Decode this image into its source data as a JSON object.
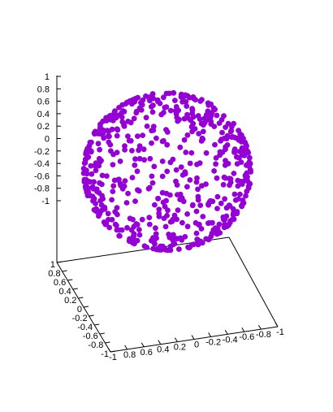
{
  "chart_data": {
    "type": "scatter",
    "subtype": "3d-scatter",
    "title": "",
    "legend": "none",
    "grid": false,
    "marker_color": "#9400d3",
    "description_of_shape": "points distributed on the surface of a unit sphere",
    "axes": {
      "z": {
        "range": [
          -1,
          1
        ],
        "ticks": [
          "1",
          "0.8",
          "0.6",
          "0.4",
          "0.2",
          "0",
          "-0.2",
          "-0.4",
          "-0.6",
          "-0.8",
          "-1"
        ]
      },
      "y": {
        "range": [
          -1,
          1
        ],
        "ticks": [
          "1",
          "0.8",
          "0.6",
          "0.4",
          "0.2",
          "0",
          "-0.2",
          "-0.4",
          "-0.6",
          "-0.8",
          "-1"
        ]
      },
      "x": {
        "range": [
          -1,
          1
        ],
        "ticks": [
          "-1",
          "0.8",
          "0.6",
          "0.4",
          "0.2",
          "0",
          "-0.2",
          "-0.4",
          "-0.6",
          "-0.8",
          "-1"
        ]
      }
    },
    "point_count": 600
  }
}
